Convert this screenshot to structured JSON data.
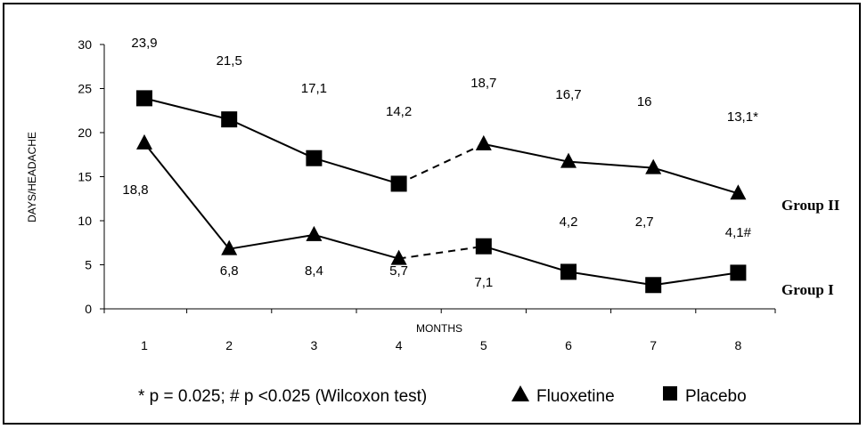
{
  "chart_data": {
    "type": "line",
    "ylabel": "DAYS/HEADACHE",
    "xlabel": "MONTHS",
    "ylim": [
      0,
      30
    ],
    "yticks": [
      "0",
      "5",
      "10",
      "15",
      "20",
      "25",
      "30"
    ],
    "categories": [
      "1",
      "2",
      "3",
      "4",
      "5",
      "6",
      "7",
      "8"
    ],
    "series": [
      {
        "name": "Group II",
        "values": [
          23.9,
          21.5,
          17.1,
          14.2,
          18.7,
          16.7,
          16.0,
          13.1
        ],
        "markers": [
          "square",
          "square",
          "square",
          "square",
          "triangle",
          "triangle",
          "triangle",
          "triangle"
        ],
        "labels": [
          "23,9",
          "21,5",
          "17,1",
          "14,2",
          "18,7",
          "16,7",
          "16",
          "13,1*"
        ]
      },
      {
        "name": "Group I",
        "values": [
          18.8,
          6.8,
          8.4,
          5.7,
          7.1,
          4.2,
          2.7,
          4.1
        ],
        "markers": [
          "triangle",
          "triangle",
          "triangle",
          "triangle",
          "square",
          "square",
          "square",
          "square"
        ],
        "labels": [
          "18,8",
          "6,8",
          "8,4",
          "5,7",
          "7,1",
          "4,2",
          "2,7",
          "4,1#"
        ]
      }
    ],
    "dashed_segment": "between months 4 and 5",
    "legend": {
      "note": "* p = 0.025; # p <0.025 (Wilcoxon test)",
      "items": [
        {
          "marker": "triangle",
          "label": "Fluoxetine"
        },
        {
          "marker": "square",
          "label": "Placebo"
        }
      ]
    },
    "grid": false
  }
}
